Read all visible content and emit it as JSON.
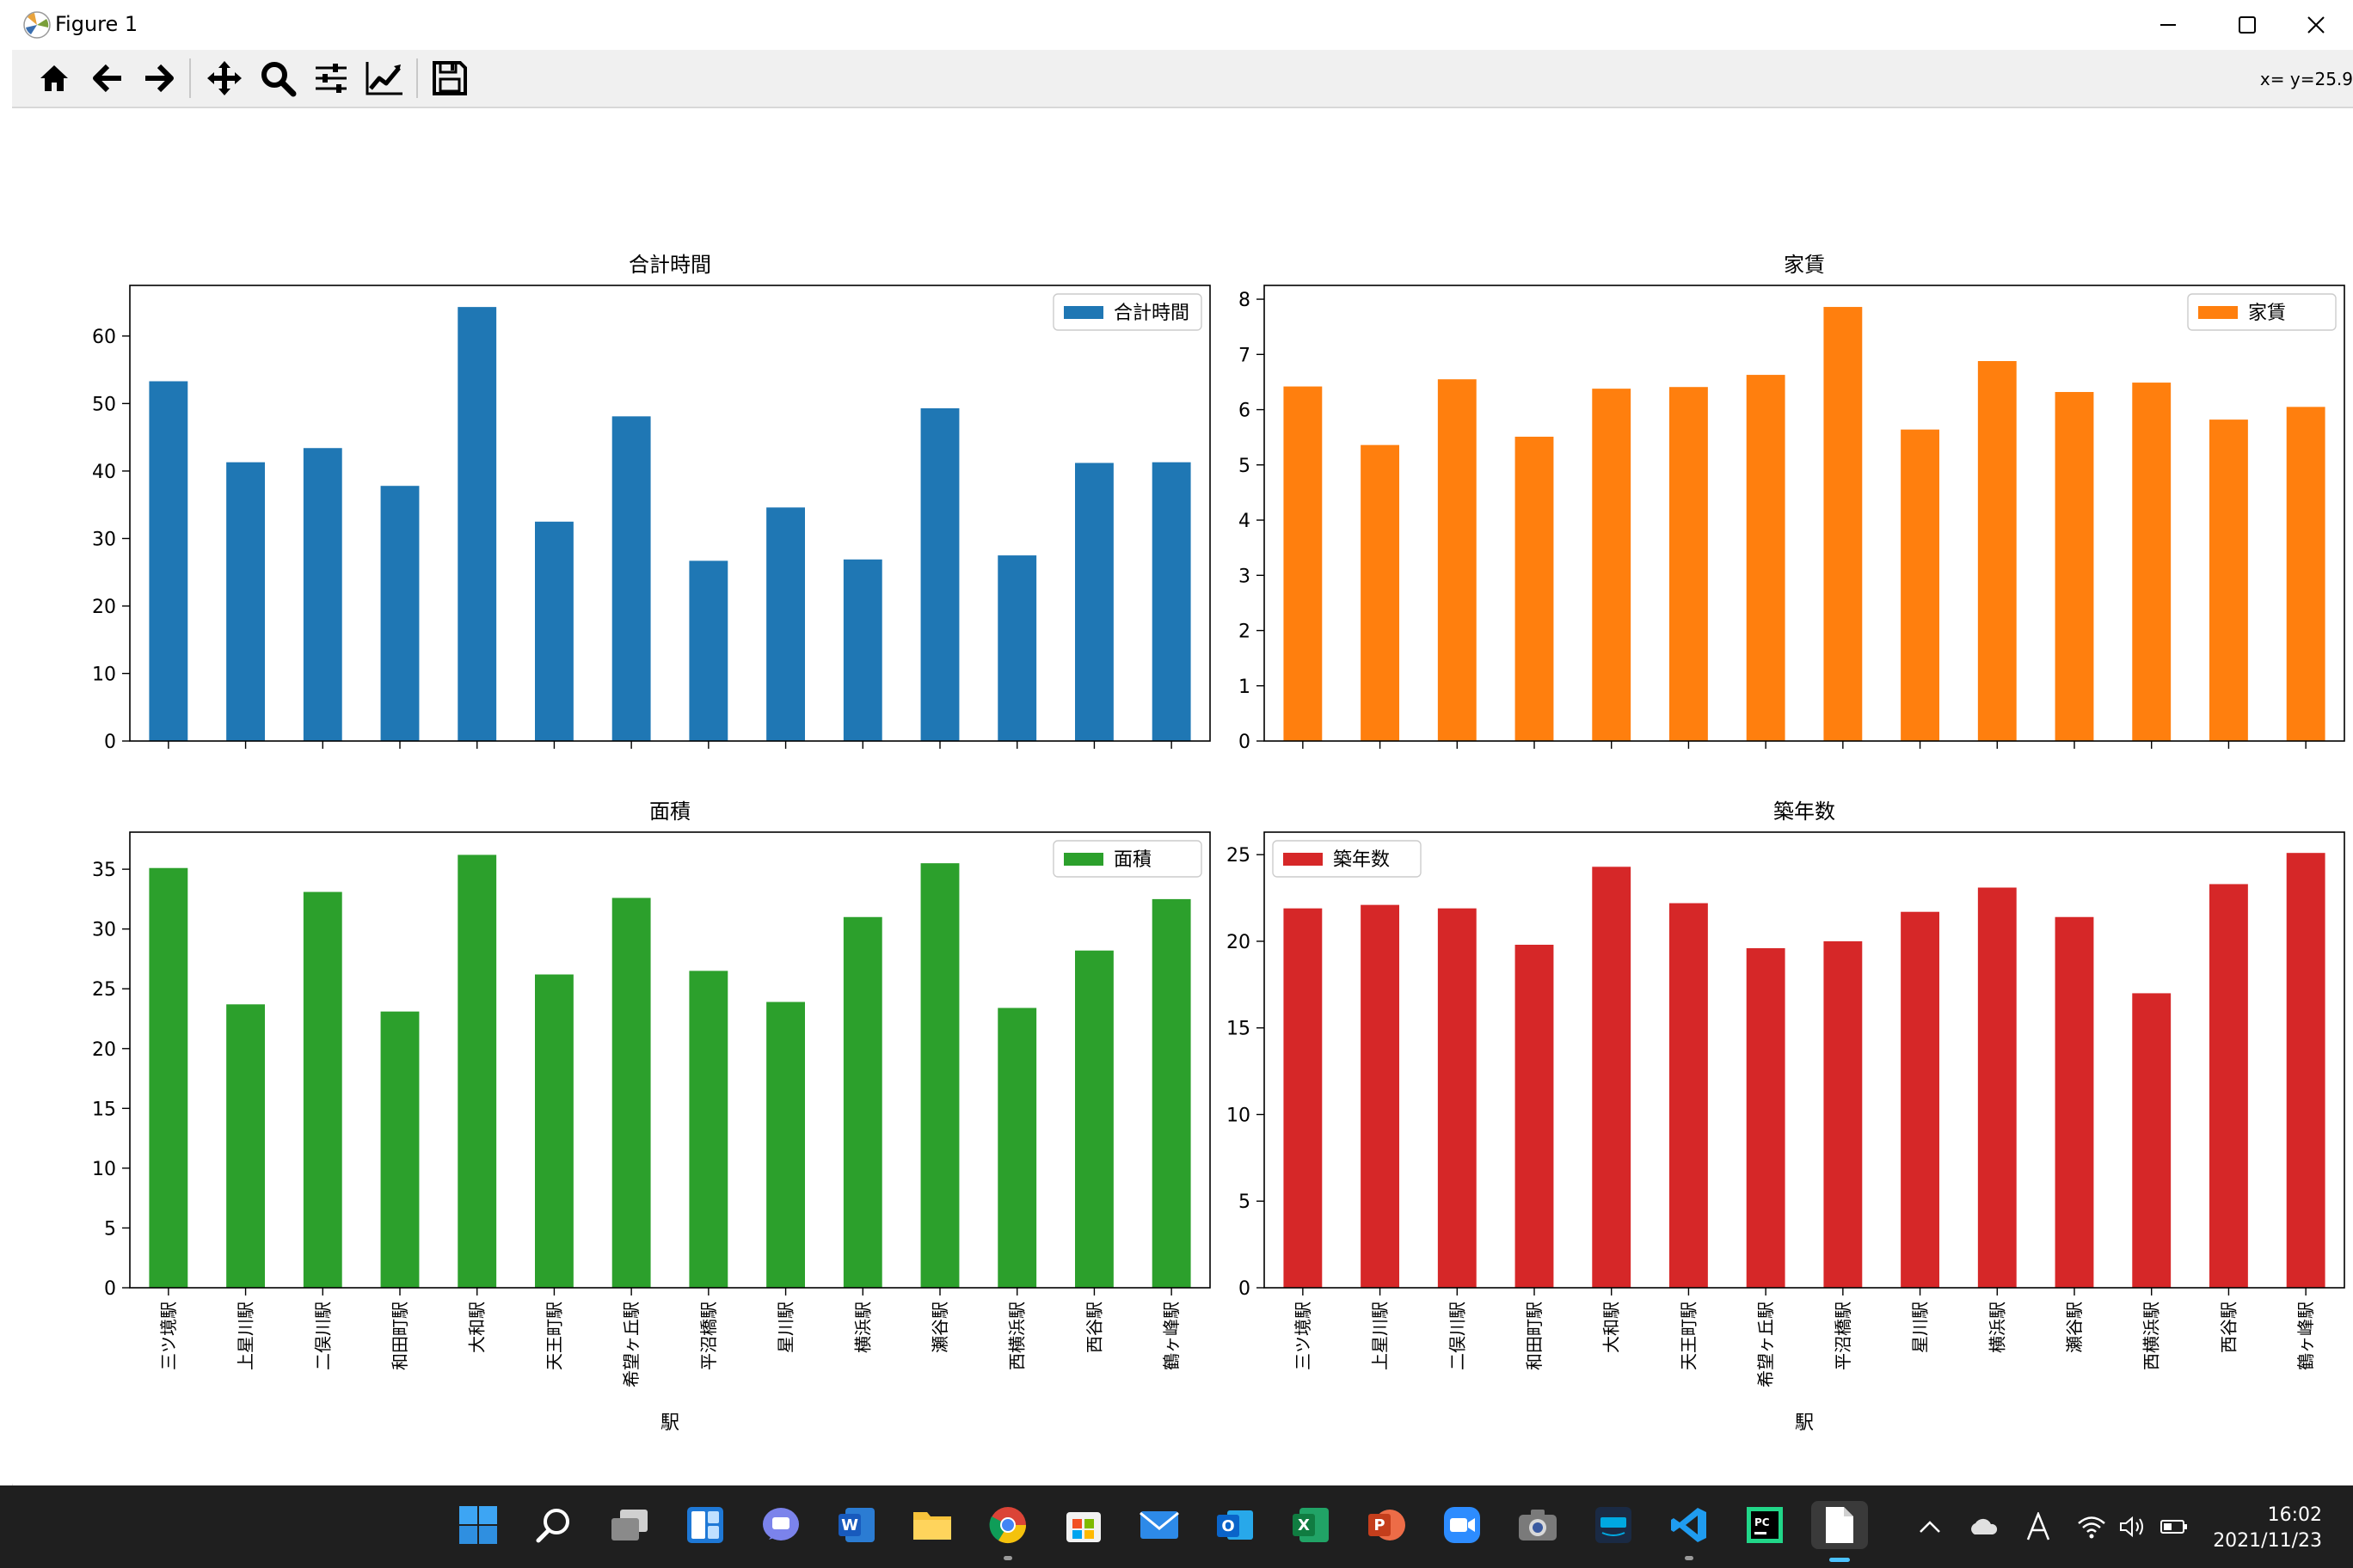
{
  "window": {
    "title": "Figure 1"
  },
  "toolbar": {
    "tools": [
      "home-icon",
      "back-icon",
      "forward-icon",
      "pan-icon",
      "zoom-icon",
      "configure-subplots-icon",
      "edit-axis-icon",
      "save-icon"
    ],
    "coordinate_readout": "x= y=25.9"
  },
  "taskbar": {
    "apps": [
      "windows-start-icon",
      "search-icon",
      "task-view-icon",
      "widgets-icon",
      "teams-chat-icon",
      "word-icon",
      "file-explorer-icon",
      "chrome-icon",
      "store-icon",
      "mail-icon",
      "outlook-icon",
      "excel-icon",
      "powerpoint-icon",
      "zoom-app-icon",
      "camera-icon",
      "prime-video-icon",
      "vscode-icon",
      "pycharm-icon",
      "file-icon"
    ],
    "time": "16:02",
    "date": "2021/11/23"
  },
  "chart_data": [
    {
      "type": "bar",
      "title": "合計時間",
      "xlabel": "",
      "categories": [
        "三ツ境駅",
        "上星川駅",
        "二俣川駅",
        "和田町駅",
        "大和駅",
        "天王町駅",
        "希望ヶ丘駅",
        "平沼橋駅",
        "星川駅",
        "横浜駅",
        "瀬谷駅",
        "西横浜駅",
        "西谷駅",
        "鶴ヶ峰駅"
      ],
      "series": [
        {
          "name": "合計時間",
          "values": [
            53.3,
            41.3,
            43.4,
            37.8,
            64.3,
            32.5,
            48.1,
            26.7,
            34.6,
            26.9,
            49.3,
            27.5,
            41.2,
            41.3
          ]
        }
      ],
      "ylim": [
        0,
        67.5
      ],
      "yticks": [
        0,
        10,
        20,
        30,
        40,
        50,
        60
      ],
      "color": "#1f77b4",
      "legend": "upper right"
    },
    {
      "type": "bar",
      "title": "家賃",
      "xlabel": "",
      "categories": [
        "三ツ境駅",
        "上星川駅",
        "二俣川駅",
        "和田町駅",
        "大和駅",
        "天王町駅",
        "希望ヶ丘駅",
        "平沼橋駅",
        "星川駅",
        "横浜駅",
        "瀬谷駅",
        "西横浜駅",
        "西谷駅",
        "鶴ヶ峰駅"
      ],
      "series": [
        {
          "name": "家賃",
          "values": [
            6.42,
            5.36,
            6.55,
            5.51,
            6.38,
            6.41,
            6.63,
            7.86,
            5.64,
            6.88,
            6.32,
            6.49,
            5.82,
            6.05
          ]
        }
      ],
      "ylim": [
        0,
        8.25
      ],
      "yticks": [
        0,
        1,
        2,
        3,
        4,
        5,
        6,
        7,
        8
      ],
      "color": "#ff7f0e",
      "legend": "upper right"
    },
    {
      "type": "bar",
      "title": "面積",
      "xlabel": "駅",
      "categories": [
        "三ツ境駅",
        "上星川駅",
        "二俣川駅",
        "和田町駅",
        "大和駅",
        "天王町駅",
        "希望ヶ丘駅",
        "平沼橋駅",
        "星川駅",
        "横浜駅",
        "瀬谷駅",
        "西横浜駅",
        "西谷駅",
        "鶴ヶ峰駅"
      ],
      "series": [
        {
          "name": "面積",
          "values": [
            35.1,
            23.7,
            33.1,
            23.1,
            36.2,
            26.2,
            32.6,
            26.5,
            23.9,
            31.0,
            35.5,
            23.4,
            28.2,
            32.5
          ]
        }
      ],
      "ylim": [
        0,
        38.1
      ],
      "yticks": [
        0,
        5,
        10,
        15,
        20,
        25,
        30,
        35
      ],
      "color": "#2ca02c",
      "legend": "upper right"
    },
    {
      "type": "bar",
      "title": "築年数",
      "xlabel": "駅",
      "categories": [
        "三ツ境駅",
        "上星川駅",
        "二俣川駅",
        "和田町駅",
        "大和駅",
        "天王町駅",
        "希望ヶ丘駅",
        "平沼橋駅",
        "星川駅",
        "横浜駅",
        "瀬谷駅",
        "西横浜駅",
        "西谷駅",
        "鶴ヶ峰駅"
      ],
      "series": [
        {
          "name": "築年数",
          "values": [
            21.9,
            22.1,
            21.9,
            19.8,
            24.3,
            22.2,
            19.6,
            20.0,
            21.7,
            23.1,
            21.4,
            17.0,
            23.3,
            25.1
          ]
        }
      ],
      "ylim": [
        0,
        26.3
      ],
      "yticks": [
        0,
        5,
        10,
        15,
        20,
        25
      ],
      "color": "#d62728",
      "legend": "upper left"
    }
  ]
}
